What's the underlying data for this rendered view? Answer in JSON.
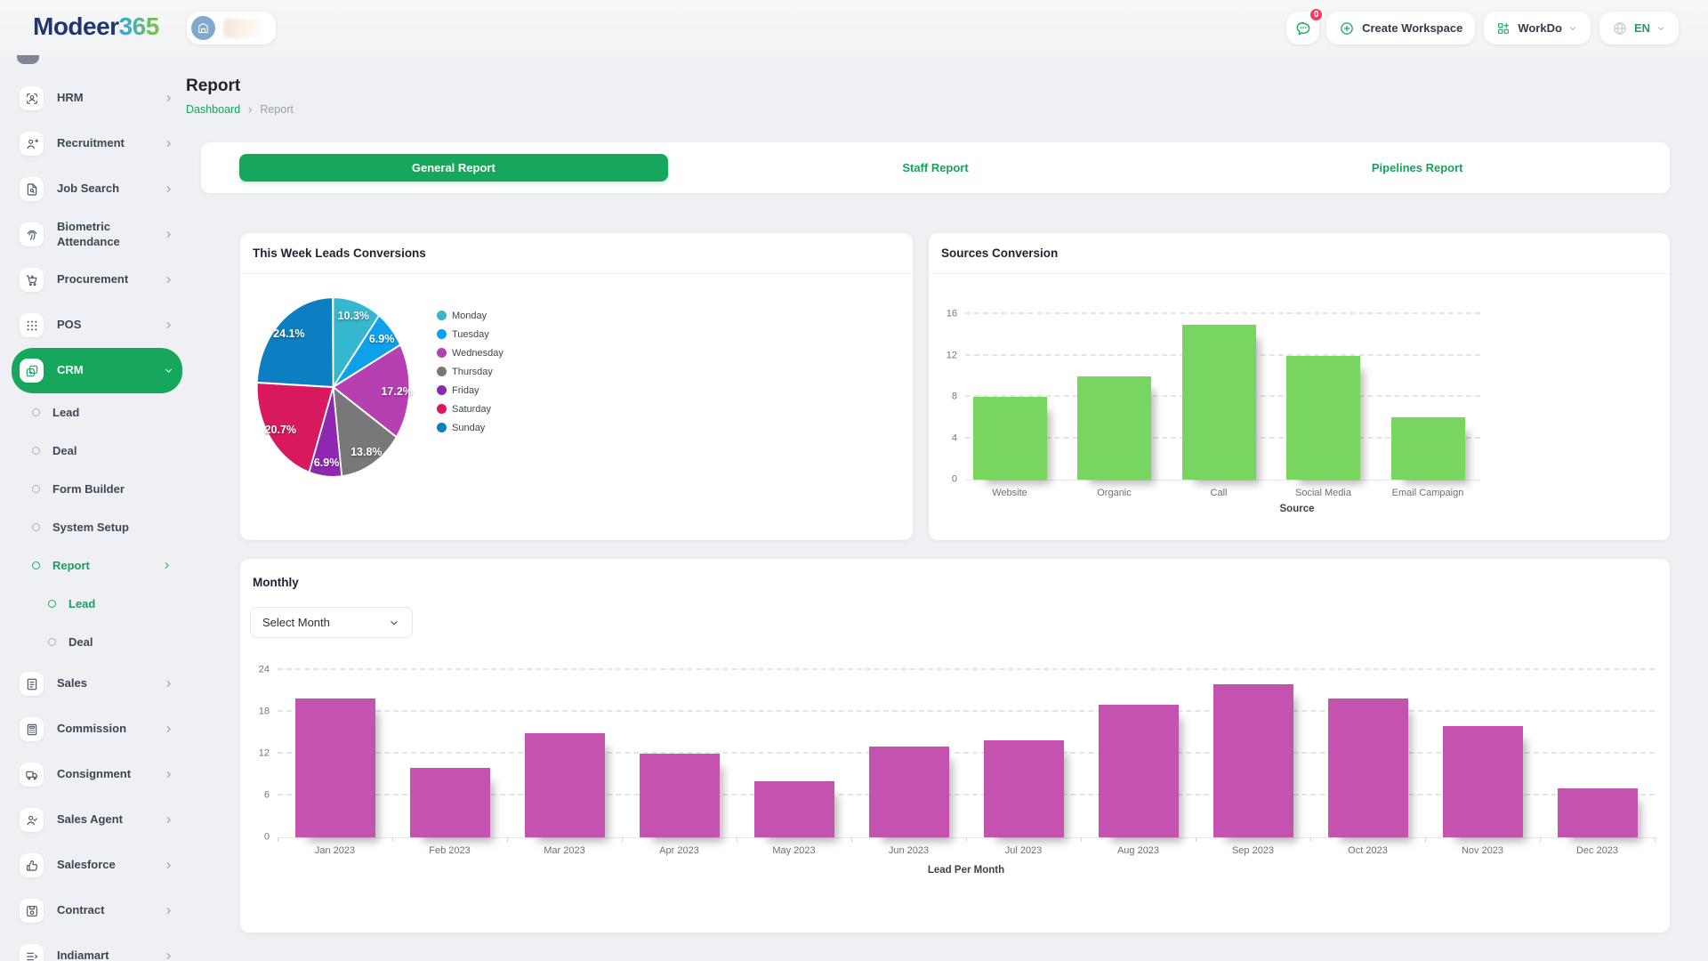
{
  "brand": {
    "primary": "Modeer",
    "accent": "365"
  },
  "header": {
    "messages_badge": "0",
    "create_workspace_label": "Create Workspace",
    "apps_menu_label": "WorkDo",
    "language_label": "EN"
  },
  "page": {
    "title": "Report",
    "breadcrumb": [
      "Dashboard",
      "Report"
    ]
  },
  "tabs": [
    {
      "label": "General Report",
      "active": true
    },
    {
      "label": "Staff Report",
      "active": false
    },
    {
      "label": "Pipelines Report",
      "active": false
    }
  ],
  "sidebar": {
    "items": [
      {
        "label": "HRM",
        "icon": "hrm-icon"
      },
      {
        "label": "Recruitment",
        "icon": "recruitment-icon"
      },
      {
        "label": "Job Search",
        "icon": "job-search-icon"
      },
      {
        "label": "Biometric Attendance",
        "icon": "biometric-icon"
      },
      {
        "label": "Procurement",
        "icon": "procurement-icon"
      },
      {
        "label": "POS",
        "icon": "pos-icon"
      },
      {
        "label": "CRM",
        "icon": "crm-icon",
        "active": true,
        "expanded": true,
        "children": [
          {
            "label": "Lead"
          },
          {
            "label": "Deal"
          },
          {
            "label": "Form Builder"
          },
          {
            "label": "System Setup"
          },
          {
            "label": "Report",
            "active": true,
            "has_children": true,
            "children": [
              {
                "label": "Lead",
                "active": true
              },
              {
                "label": "Deal"
              }
            ]
          }
        ]
      },
      {
        "label": "Sales",
        "icon": "sales-icon"
      },
      {
        "label": "Commission",
        "icon": "commission-icon"
      },
      {
        "label": "Consignment",
        "icon": "consignment-icon"
      },
      {
        "label": "Sales Agent",
        "icon": "sales-agent-icon"
      },
      {
        "label": "Salesforce",
        "icon": "salesforce-icon"
      },
      {
        "label": "Contract",
        "icon": "contract-icon"
      },
      {
        "label": "Indiamart",
        "icon": "indiamart-icon"
      }
    ]
  },
  "monthly": {
    "select_placeholder": "Select Month"
  },
  "chart_data": [
    {
      "type": "pie",
      "title": "This Week Leads Conversions",
      "labels": [
        "Monday",
        "Tuesday",
        "Wednesday",
        "Thursday",
        "Friday",
        "Saturday",
        "Sunday"
      ],
      "values_pct": [
        10.3,
        6.9,
        17.2,
        13.8,
        6.9,
        20.7,
        24.1
      ],
      "colors": [
        "#35b8cf",
        "#0da1ea",
        "#b63fb2",
        "#787878",
        "#8f28b0",
        "#d9195f",
        "#0b7fc1"
      ],
      "legend_position": "right"
    },
    {
      "type": "bar",
      "title": "Sources Conversion",
      "categories": [
        "Website",
        "Organic",
        "Call",
        "Social Media",
        "Email Campaign"
      ],
      "values": [
        8,
        10,
        15,
        12,
        6
      ],
      "xlabel": "Source",
      "ylim": [
        0,
        16
      ],
      "ytick_step": 4,
      "bar_color": "#78d55f",
      "grid": "dashed"
    },
    {
      "type": "bar",
      "title": "Monthly",
      "categories": [
        "Jan 2023",
        "Feb 2023",
        "Mar 2023",
        "Apr 2023",
        "May 2023",
        "Jun 2023",
        "Jul 2023",
        "Aug 2023",
        "Sep 2023",
        "Oct 2023",
        "Nov 2023",
        "Dec 2023"
      ],
      "values": [
        20,
        10,
        15,
        12,
        8,
        13,
        14,
        19,
        22,
        20,
        16,
        7
      ],
      "xlabel": "Lead Per Month",
      "ylim": [
        0,
        24
      ],
      "ytick_step": 6,
      "bar_color": "#c452af",
      "grid": "dashed"
    }
  ]
}
